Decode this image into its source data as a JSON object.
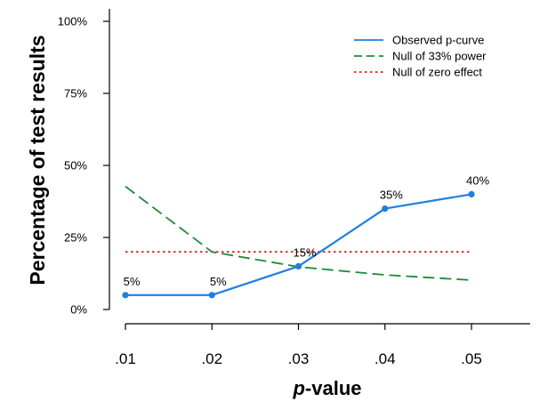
{
  "chart_data": {
    "type": "line",
    "x": [
      ".01",
      ".02",
      ".03",
      ".04",
      ".05"
    ],
    "ylim": [
      0,
      100
    ],
    "yticks": [
      "0%",
      "25%",
      "50%",
      "75%",
      "100%"
    ],
    "ytick_values": [
      0,
      25,
      50,
      75,
      100
    ],
    "xlabel_italic": "p",
    "xlabel_rest": "-value",
    "ylabel": "Percentage of test results",
    "legend_position": "top-right",
    "series": [
      {
        "name": "Observed p-curve",
        "values": [
          5,
          5,
          15,
          35,
          40
        ],
        "labels": [
          "5%",
          "5%",
          "15%",
          "35%",
          "40%"
        ],
        "color": "#1f7fe0",
        "style": "solid",
        "markers": true
      },
      {
        "name": "Null of 33% power",
        "values": [
          42.7,
          20,
          14.8,
          12,
          10.2
        ],
        "color": "#1e8a3a",
        "style": "dashed",
        "markers": false
      },
      {
        "name": "Null of zero effect",
        "values": [
          20,
          20,
          20,
          20,
          20
        ],
        "color": "#e8211c",
        "style": "dotted",
        "markers": false
      }
    ]
  }
}
